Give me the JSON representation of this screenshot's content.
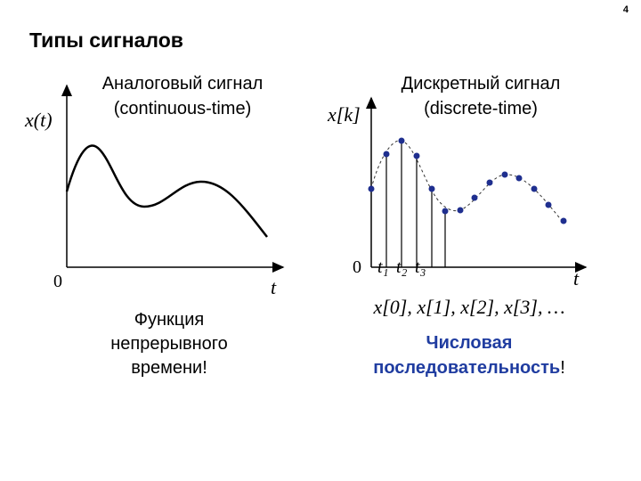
{
  "page_number": "4",
  "title": "Типы сигналов",
  "analog": {
    "heading": "Аналоговый сигнал",
    "subheading": "(continuous-time)",
    "y_axis_label": "x(t)",
    "origin_label": "0",
    "x_axis_label": "t",
    "caption": [
      "Функция",
      "непрерывного",
      "времени!"
    ]
  },
  "discrete": {
    "heading": "Дискретный сигнал",
    "subheading": "(discrete-time)",
    "y_axis_label": "x[k]",
    "origin_label": "0",
    "time_labels": [
      "t₁",
      "t₂",
      "t₃"
    ],
    "x_axis_label": "t",
    "sequence": "x[0], x[1], x[2], x[3], …",
    "caption": [
      "Числовая",
      "последовательность",
      "!"
    ]
  }
}
